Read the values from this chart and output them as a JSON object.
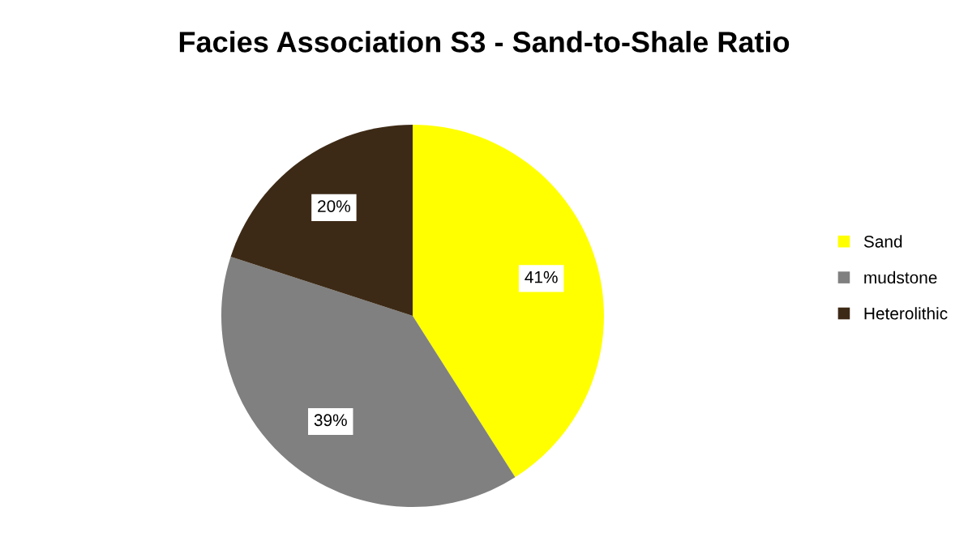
{
  "chart_data": {
    "type": "pie",
    "title": "Facies Association S3 - Sand-to-Shale Ratio",
    "categories": [
      "Sand",
      "mudstone",
      "Heterolithic"
    ],
    "values": [
      41,
      39,
      20
    ],
    "colors": [
      "#ffff00",
      "#808080",
      "#3d2a16"
    ],
    "value_labels": [
      "41%",
      "39%",
      "20%"
    ],
    "legend": "right"
  }
}
